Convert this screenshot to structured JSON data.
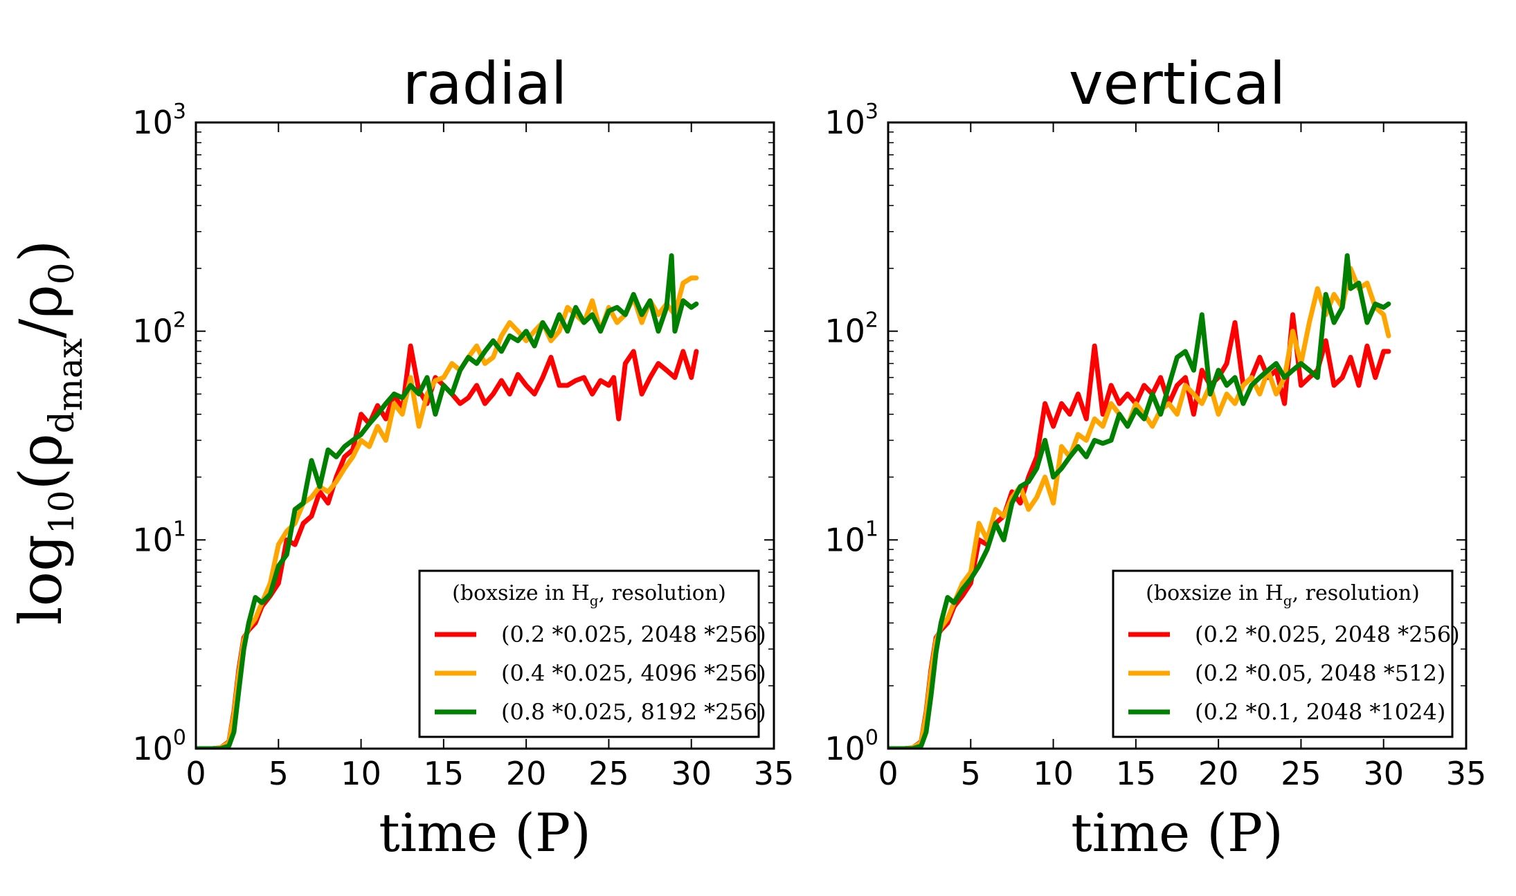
{
  "figure": {
    "ylabel_main": "log",
    "ylabel_sub10": "10",
    "ylabel_open": "(ρ",
    "ylabel_sub_d": "d",
    "ylabel_sub_max": "max",
    "ylabel_mid": "/ρ",
    "ylabel_sub0": "0",
    "ylabel_close": ")"
  },
  "chart_data": [
    {
      "type": "line",
      "title": "radial",
      "xlabel": "time (P)",
      "ylabel": "log10(ρd_max/ρ0)",
      "yscale": "log",
      "xlim": [
        0,
        35
      ],
      "ylim": [
        1,
        1000
      ],
      "xticks": [
        "0",
        "5",
        "10",
        "15",
        "20",
        "25",
        "30",
        "35"
      ],
      "yticks": [
        {
          "base": "10",
          "exp": "0",
          "value": 1
        },
        {
          "base": "10",
          "exp": "1",
          "value": 10
        },
        {
          "base": "10",
          "exp": "2",
          "value": 100
        },
        {
          "base": "10",
          "exp": "3",
          "value": 1000
        }
      ],
      "legend_position": "lower-right",
      "legend_title": {
        "pre": "(boxsize in H",
        "sub": "g",
        "post": ", resolution)"
      },
      "series": [
        {
          "name": "(0.2 *0.025, 2048 *256)",
          "color": "#ff0000",
          "x": [
            0,
            1,
            1.5,
            2,
            2.3,
            2.6,
            2.9,
            3.2,
            3.6,
            4.0,
            4.5,
            5.0,
            5.5,
            6.0,
            6.5,
            7.0,
            7.5,
            8.0,
            8.5,
            9.0,
            9.5,
            10.0,
            10.5,
            11.0,
            11.5,
            12.0,
            12.5,
            13.0,
            13.5,
            14.0,
            14.5,
            15.0,
            15.5,
            16.0,
            16.5,
            17.0,
            17.5,
            18.0,
            18.5,
            19.0,
            19.5,
            20.0,
            20.5,
            21.0,
            21.5,
            22.0,
            22.5,
            23.0,
            23.5,
            24.0,
            24.5,
            25.0,
            25.3,
            25.6,
            26.0,
            26.5,
            27.0,
            27.5,
            28.0,
            28.5,
            29.0,
            29.5,
            30.0,
            30.3
          ],
          "y": [
            1,
            1,
            1.01,
            1.08,
            1.5,
            2.4,
            3.4,
            3.7,
            4.0,
            4.8,
            5.4,
            6.2,
            10.0,
            9.5,
            12,
            13,
            17,
            15,
            20,
            25,
            27,
            40,
            36,
            44,
            38,
            50,
            42,
            85,
            52,
            45,
            60,
            55,
            50,
            45,
            48,
            55,
            45,
            50,
            58,
            50,
            62,
            55,
            50,
            60,
            75,
            55,
            55,
            58,
            60,
            50,
            58,
            55,
            60,
            38,
            70,
            80,
            50,
            60,
            70,
            65,
            60,
            80,
            60,
            80
          ]
        },
        {
          "name": "(0.4 *0.025, 4096 *256)",
          "color": "#ffa500",
          "x": [
            0,
            1,
            1.5,
            2,
            2.3,
            2.6,
            2.9,
            3.2,
            3.6,
            4.0,
            4.5,
            5.0,
            5.5,
            6.0,
            6.5,
            7.0,
            7.5,
            8.0,
            8.5,
            9.0,
            9.5,
            10.0,
            10.5,
            11.0,
            11.5,
            12.0,
            12.5,
            13.0,
            13.5,
            14.0,
            14.5,
            15.0,
            15.5,
            16.0,
            16.5,
            17.0,
            17.5,
            18.0,
            18.5,
            19.0,
            19.5,
            20.0,
            20.5,
            21.0,
            21.5,
            22.0,
            22.5,
            23.0,
            23.5,
            24.0,
            24.5,
            25.0,
            25.5,
            26.0,
            26.5,
            27.0,
            27.5,
            28.0,
            28.5,
            29.0,
            29.5,
            30.0,
            30.3
          ],
          "y": [
            1,
            1,
            1.01,
            1.07,
            1.45,
            2.3,
            3.3,
            3.8,
            4.2,
            5.0,
            6.2,
            9.5,
            11,
            12,
            15,
            16,
            18,
            17,
            19,
            22,
            25,
            30,
            28,
            35,
            30,
            45,
            40,
            60,
            35,
            50,
            58,
            60,
            70,
            65,
            75,
            85,
            70,
            75,
            95,
            110,
            100,
            90,
            100,
            110,
            90,
            100,
            130,
            120,
            110,
            140,
            100,
            130,
            110,
            120,
            145,
            110,
            140,
            120,
            135,
            120,
            170,
            180,
            180
          ]
        },
        {
          "name": "(0.8 *0.025, 8192 *256)",
          "color": "#008000",
          "x": [
            0,
            1,
            1.5,
            2,
            2.3,
            2.6,
            2.9,
            3.2,
            3.6,
            4.0,
            4.5,
            5.0,
            5.5,
            6.0,
            6.5,
            7.0,
            7.5,
            8.0,
            8.5,
            9.0,
            9.5,
            10.0,
            10.5,
            11.0,
            11.5,
            12.0,
            12.5,
            13.0,
            13.5,
            14.0,
            14.5,
            15.0,
            15.5,
            16.0,
            16.5,
            17.0,
            17.5,
            18.0,
            18.5,
            19.0,
            19.5,
            20.0,
            20.5,
            21.0,
            21.5,
            22.0,
            22.5,
            23.0,
            23.5,
            24.0,
            24.5,
            25.0,
            25.5,
            26.0,
            26.5,
            27.0,
            27.5,
            28.0,
            28.5,
            28.8,
            29.0,
            29.5,
            30.0,
            30.3
          ],
          "y": [
            1,
            1,
            1,
            1.03,
            1.2,
            1.9,
            3.0,
            4.0,
            5.3,
            5.0,
            5.5,
            7.5,
            8.5,
            14,
            15,
            24,
            18,
            27,
            25,
            28,
            30,
            32,
            36,
            40,
            45,
            50,
            48,
            55,
            50,
            60,
            40,
            55,
            50,
            65,
            75,
            70,
            80,
            90,
            80,
            95,
            90,
            100,
            85,
            110,
            95,
            120,
            100,
            130,
            110,
            120,
            100,
            125,
            130,
            120,
            150,
            120,
            140,
            100,
            130,
            230,
            100,
            140,
            130,
            135
          ]
        }
      ]
    },
    {
      "type": "line",
      "title": "vertical",
      "xlabel": "time (P)",
      "ylabel": "log10(ρd_max/ρ0)",
      "yscale": "log",
      "xlim": [
        0,
        35
      ],
      "ylim": [
        1,
        1000
      ],
      "xticks": [
        "0",
        "5",
        "10",
        "15",
        "20",
        "25",
        "30",
        "35"
      ],
      "yticks": [
        {
          "base": "10",
          "exp": "0",
          "value": 1
        },
        {
          "base": "10",
          "exp": "1",
          "value": 10
        },
        {
          "base": "10",
          "exp": "2",
          "value": 100
        },
        {
          "base": "10",
          "exp": "3",
          "value": 1000
        }
      ],
      "legend_position": "lower-right",
      "legend_title": {
        "pre": "(boxsize in H",
        "sub": "g",
        "post": ", resolution)"
      },
      "series": [
        {
          "name": "(0.2 *0.025, 2048 *256)",
          "color": "#ff0000",
          "x": [
            0,
            1,
            1.5,
            2,
            2.3,
            2.6,
            2.9,
            3.2,
            3.6,
            4.0,
            4.5,
            5.0,
            5.5,
            6.0,
            6.5,
            7.0,
            7.5,
            8.0,
            8.5,
            9.0,
            9.5,
            10.0,
            10.5,
            11.0,
            11.5,
            12.0,
            12.5,
            13.0,
            13.5,
            14.0,
            14.5,
            15.0,
            15.5,
            16.0,
            16.5,
            17.0,
            17.5,
            18.0,
            18.5,
            19.0,
            19.5,
            20.0,
            20.5,
            21.0,
            21.5,
            22.0,
            22.5,
            23.0,
            23.5,
            24.0,
            24.5,
            25.0,
            25.5,
            26.0,
            26.5,
            27.0,
            27.5,
            28.0,
            28.5,
            29.0,
            29.5,
            30.0,
            30.3
          ],
          "y": [
            1,
            1,
            1.01,
            1.08,
            1.5,
            2.4,
            3.4,
            3.7,
            4.0,
            4.8,
            5.4,
            6.2,
            10.0,
            9.5,
            12,
            13,
            17,
            15,
            20,
            25,
            45,
            35,
            45,
            40,
            50,
            38,
            85,
            40,
            55,
            45,
            50,
            45,
            55,
            50,
            60,
            45,
            55,
            60,
            40,
            65,
            55,
            60,
            70,
            110,
            55,
            60,
            75,
            60,
            65,
            45,
            120,
            55,
            60,
            65,
            90,
            55,
            60,
            75,
            55,
            85,
            60,
            80,
            80
          ]
        },
        {
          "name": "(0.2 *0.05, 2048 *512)",
          "color": "#ffa500",
          "x": [
            0,
            1,
            1.5,
            2,
            2.3,
            2.6,
            2.9,
            3.2,
            3.6,
            4.0,
            4.5,
            5.0,
            5.5,
            6.0,
            6.5,
            7.0,
            7.5,
            8.0,
            8.5,
            9.0,
            9.5,
            10.0,
            10.5,
            11.0,
            11.5,
            12.0,
            12.5,
            13.0,
            13.5,
            14.0,
            14.5,
            15.0,
            15.5,
            16.0,
            16.5,
            17.0,
            17.5,
            18.0,
            18.5,
            19.0,
            19.5,
            20.0,
            20.5,
            21.0,
            21.5,
            22.0,
            22.5,
            23.0,
            23.5,
            24.0,
            24.5,
            25.0,
            25.5,
            26.0,
            26.5,
            27.0,
            27.5,
            28.0,
            28.5,
            29.0,
            29.5,
            30.0,
            30.3
          ],
          "y": [
            1,
            1,
            1.01,
            1.07,
            1.45,
            2.3,
            3.3,
            3.8,
            4.2,
            5.0,
            6.2,
            7.0,
            12,
            10,
            14,
            13,
            16,
            18,
            14,
            16,
            20,
            15,
            28,
            25,
            32,
            30,
            38,
            35,
            45,
            40,
            35,
            45,
            40,
            35,
            42,
            45,
            40,
            55,
            50,
            45,
            55,
            40,
            50,
            45,
            55,
            60,
            50,
            65,
            50,
            60,
            100,
            70,
            110,
            160,
            120,
            150,
            130,
            200,
            160,
            170,
            130,
            120,
            95
          ]
        },
        {
          "name": "(0.2 *0.1, 2048 *1024)",
          "color": "#008000",
          "x": [
            0,
            1,
            1.5,
            2,
            2.3,
            2.6,
            2.9,
            3.2,
            3.6,
            4.0,
            4.5,
            5.0,
            5.5,
            6.0,
            6.5,
            7.0,
            7.5,
            8.0,
            8.5,
            9.0,
            9.5,
            10.0,
            10.5,
            11.0,
            11.5,
            12.0,
            12.5,
            13.0,
            13.5,
            14.0,
            14.5,
            15.0,
            15.5,
            16.0,
            16.5,
            17.0,
            17.5,
            18.0,
            18.5,
            19.0,
            19.5,
            20.0,
            20.5,
            21.0,
            21.5,
            22.0,
            22.5,
            23.0,
            23.5,
            24.0,
            24.5,
            25.0,
            25.5,
            26.0,
            26.5,
            27.0,
            27.5,
            27.8,
            28.0,
            28.5,
            29.0,
            29.5,
            30.0,
            30.3
          ],
          "y": [
            1,
            1,
            1,
            1.03,
            1.2,
            1.8,
            2.9,
            4.0,
            5.3,
            5.0,
            5.8,
            6.5,
            7.5,
            9,
            12,
            10,
            15,
            18,
            19,
            22,
            30,
            20,
            22,
            25,
            28,
            25,
            30,
            29,
            30,
            40,
            35,
            42,
            38,
            50,
            40,
            55,
            75,
            80,
            65,
            120,
            50,
            65,
            55,
            60,
            45,
            55,
            60,
            65,
            70,
            60,
            65,
            70,
            65,
            60,
            150,
            110,
            130,
            230,
            160,
            170,
            110,
            135,
            130,
            135
          ]
        }
      ]
    }
  ]
}
